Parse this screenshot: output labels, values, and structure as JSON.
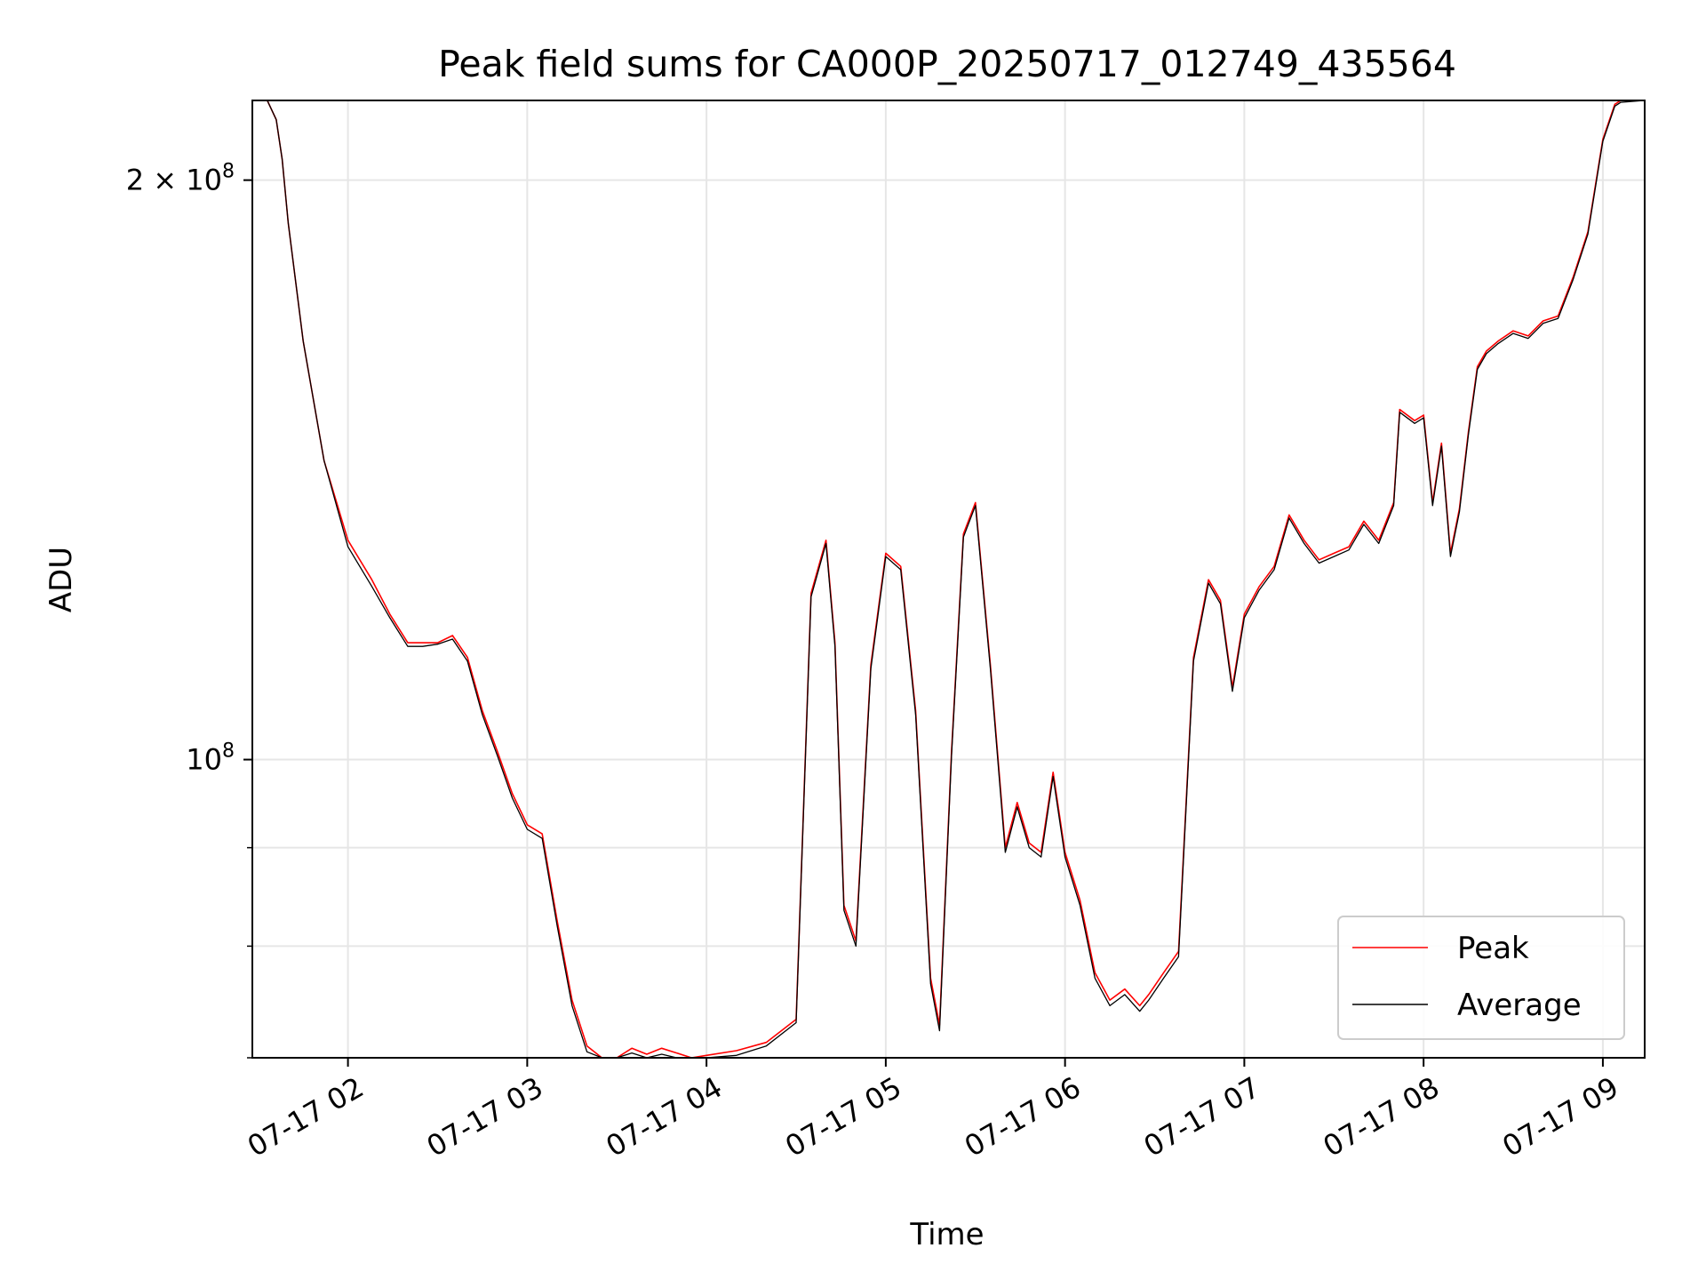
{
  "chart_data": {
    "type": "line",
    "title": "Peak field sums for CA000P_20250717_012749_435564",
    "xlabel": "Time",
    "ylabel": "ADU",
    "x_scale": "time",
    "y_scale": "log",
    "grid": true,
    "legend_position": "lower-right",
    "xlim": [
      "2025-07-17 01:28",
      "2025-07-17 09:14"
    ],
    "ylim": [
      70000000,
      220000000
    ],
    "x_ticks": [
      {
        "value": "2025-07-17 02:00",
        "label": "07-17 02"
      },
      {
        "value": "2025-07-17 03:00",
        "label": "07-17 03"
      },
      {
        "value": "2025-07-17 04:00",
        "label": "07-17 04"
      },
      {
        "value": "2025-07-17 05:00",
        "label": "07-17 05"
      },
      {
        "value": "2025-07-17 06:00",
        "label": "07-17 06"
      },
      {
        "value": "2025-07-17 07:00",
        "label": "07-17 07"
      },
      {
        "value": "2025-07-17 08:00",
        "label": "07-17 08"
      },
      {
        "value": "2025-07-17 09:00",
        "label": "07-17 09"
      }
    ],
    "y_ticks_major": [
      {
        "value": 100000000,
        "label_base": "10",
        "label_exp": "8"
      },
      {
        "value": 200000000,
        "label_base": "2 × 10",
        "label_exp": "8"
      }
    ],
    "y_ticks_minor": [
      70000000,
      80000000,
      90000000
    ],
    "series": [
      {
        "name": "Peak",
        "color": "#ff0000",
        "x": [
          "2025-07-17 01:28",
          "2025-07-17 01:33",
          "2025-07-17 01:36",
          "2025-07-17 01:38",
          "2025-07-17 01:40",
          "2025-07-17 01:45",
          "2025-07-17 01:52",
          "2025-07-17 02:00",
          "2025-07-17 02:08",
          "2025-07-17 02:14",
          "2025-07-17 02:20",
          "2025-07-17 02:25",
          "2025-07-17 02:30",
          "2025-07-17 02:35",
          "2025-07-17 02:40",
          "2025-07-17 02:45",
          "2025-07-17 02:50",
          "2025-07-17 02:55",
          "2025-07-17 03:00",
          "2025-07-17 03:05",
          "2025-07-17 03:10",
          "2025-07-17 03:15",
          "2025-07-17 03:20",
          "2025-07-17 03:25",
          "2025-07-17 03:30",
          "2025-07-17 03:35",
          "2025-07-17 03:40",
          "2025-07-17 03:45",
          "2025-07-17 03:50",
          "2025-07-17 03:55",
          "2025-07-17 04:00",
          "2025-07-17 04:10",
          "2025-07-17 04:20",
          "2025-07-17 04:30",
          "2025-07-17 04:35",
          "2025-07-17 04:40",
          "2025-07-17 04:43",
          "2025-07-17 04:46",
          "2025-07-17 04:50",
          "2025-07-17 04:55",
          "2025-07-17 05:00",
          "2025-07-17 05:05",
          "2025-07-17 05:10",
          "2025-07-17 05:15",
          "2025-07-17 05:18",
          "2025-07-17 05:22",
          "2025-07-17 05:26",
          "2025-07-17 05:30",
          "2025-07-17 05:35",
          "2025-07-17 05:40",
          "2025-07-17 05:44",
          "2025-07-17 05:48",
          "2025-07-17 05:52",
          "2025-07-17 05:56",
          "2025-07-17 06:00",
          "2025-07-17 06:05",
          "2025-07-17 06:10",
          "2025-07-17 06:15",
          "2025-07-17 06:20",
          "2025-07-17 06:25",
          "2025-07-17 06:28",
          "2025-07-17 06:33",
          "2025-07-17 06:38",
          "2025-07-17 06:43",
          "2025-07-17 06:48",
          "2025-07-17 06:52",
          "2025-07-17 06:56",
          "2025-07-17 07:00",
          "2025-07-17 07:05",
          "2025-07-17 07:10",
          "2025-07-17 07:15",
          "2025-07-17 07:20",
          "2025-07-17 07:25",
          "2025-07-17 07:30",
          "2025-07-17 07:35",
          "2025-07-17 07:40",
          "2025-07-17 07:45",
          "2025-07-17 07:50",
          "2025-07-17 07:52",
          "2025-07-17 07:57",
          "2025-07-17 08:00",
          "2025-07-17 08:03",
          "2025-07-17 08:06",
          "2025-07-17 08:09",
          "2025-07-17 08:12",
          "2025-07-17 08:15",
          "2025-07-17 08:18",
          "2025-07-17 08:21",
          "2025-07-17 08:25",
          "2025-07-17 08:30",
          "2025-07-17 08:35",
          "2025-07-17 08:40",
          "2025-07-17 08:45",
          "2025-07-17 08:50",
          "2025-07-17 08:55",
          "2025-07-17 09:00",
          "2025-07-17 09:04",
          "2025-07-17 09:06",
          "2025-07-17 09:14"
        ],
        "values": [
          220000000,
          220000000,
          215000000,
          205000000,
          190000000,
          165000000,
          143000000,
          130000000,
          124000000,
          119000000,
          115000000,
          115000000,
          115000000,
          116000000,
          113000000,
          106000000,
          101000000,
          96000000,
          92500000,
          91500000,
          82500000,
          75000000,
          71000000,
          70000000,
          69700000,
          70800000,
          70300000,
          70800000,
          70400000,
          70000000,
          70200000,
          70600000,
          71300000,
          73300000,
          122000000,
          130000000,
          115000000,
          84000000,
          80500000,
          112000000,
          128000000,
          126000000,
          106000000,
          77000000,
          72800000,
          101000000,
          131000000,
          136000000,
          112000000,
          90000000,
          95000000,
          90500000,
          89500000,
          98500000,
          89500000,
          84500000,
          77500000,
          75000000,
          76000000,
          74500000,
          75500000,
          77500000,
          79500000,
          113000000,
          124000000,
          121000000,
          109000000,
          119000000,
          123000000,
          126000000,
          134000000,
          130000000,
          127000000,
          128000000,
          129000000,
          133000000,
          130000000,
          136000000,
          152000000,
          150000000,
          151000000,
          136000000,
          146000000,
          128000000,
          135000000,
          148000000,
          160000000,
          163000000,
          165000000,
          167000000,
          166000000,
          169000000,
          170000000,
          178000000,
          188000000,
          210000000,
          219000000,
          220000000,
          220000000
        ]
      },
      {
        "name": "Average",
        "color": "#000000",
        "x": [
          "2025-07-17 01:28",
          "2025-07-17 01:33",
          "2025-07-17 01:36",
          "2025-07-17 01:38",
          "2025-07-17 01:40",
          "2025-07-17 01:45",
          "2025-07-17 01:52",
          "2025-07-17 02:00",
          "2025-07-17 02:08",
          "2025-07-17 02:14",
          "2025-07-17 02:20",
          "2025-07-17 02:25",
          "2025-07-17 02:30",
          "2025-07-17 02:35",
          "2025-07-17 02:40",
          "2025-07-17 02:45",
          "2025-07-17 02:50",
          "2025-07-17 02:55",
          "2025-07-17 03:00",
          "2025-07-17 03:05",
          "2025-07-17 03:10",
          "2025-07-17 03:15",
          "2025-07-17 03:20",
          "2025-07-17 03:25",
          "2025-07-17 03:30",
          "2025-07-17 03:35",
          "2025-07-17 03:40",
          "2025-07-17 03:45",
          "2025-07-17 03:50",
          "2025-07-17 03:55",
          "2025-07-17 04:00",
          "2025-07-17 04:10",
          "2025-07-17 04:20",
          "2025-07-17 04:30",
          "2025-07-17 04:35",
          "2025-07-17 04:40",
          "2025-07-17 04:43",
          "2025-07-17 04:46",
          "2025-07-17 04:50",
          "2025-07-17 04:55",
          "2025-07-17 05:00",
          "2025-07-17 05:05",
          "2025-07-17 05:10",
          "2025-07-17 05:15",
          "2025-07-17 05:18",
          "2025-07-17 05:22",
          "2025-07-17 05:26",
          "2025-07-17 05:30",
          "2025-07-17 05:35",
          "2025-07-17 05:40",
          "2025-07-17 05:44",
          "2025-07-17 05:48",
          "2025-07-17 05:52",
          "2025-07-17 05:56",
          "2025-07-17 06:00",
          "2025-07-17 06:05",
          "2025-07-17 06:10",
          "2025-07-17 06:15",
          "2025-07-17 06:20",
          "2025-07-17 06:25",
          "2025-07-17 06:28",
          "2025-07-17 06:33",
          "2025-07-17 06:38",
          "2025-07-17 06:43",
          "2025-07-17 06:48",
          "2025-07-17 06:52",
          "2025-07-17 06:56",
          "2025-07-17 07:00",
          "2025-07-17 07:05",
          "2025-07-17 07:10",
          "2025-07-17 07:15",
          "2025-07-17 07:20",
          "2025-07-17 07:25",
          "2025-07-17 07:30",
          "2025-07-17 07:35",
          "2025-07-17 07:40",
          "2025-07-17 07:45",
          "2025-07-17 07:50",
          "2025-07-17 07:52",
          "2025-07-17 07:57",
          "2025-07-17 08:00",
          "2025-07-17 08:03",
          "2025-07-17 08:06",
          "2025-07-17 08:09",
          "2025-07-17 08:12",
          "2025-07-17 08:15",
          "2025-07-17 08:18",
          "2025-07-17 08:21",
          "2025-07-17 08:25",
          "2025-07-17 08:30",
          "2025-07-17 08:35",
          "2025-07-17 08:40",
          "2025-07-17 08:45",
          "2025-07-17 08:50",
          "2025-07-17 08:55",
          "2025-07-17 09:00",
          "2025-07-17 09:04",
          "2025-07-17 09:06",
          "2025-07-17 09:14"
        ],
        "values": [
          220000000,
          220000000,
          215000000,
          205000000,
          190000000,
          165000000,
          143000000,
          129000000,
          123000000,
          118500000,
          114500000,
          114500000,
          114800000,
          115500000,
          112500000,
          105500000,
          100500000,
          95500000,
          92000000,
          91000000,
          82000000,
          74500000,
          70500000,
          69600000,
          69300000,
          70400000,
          69800000,
          70300000,
          69900000,
          69500000,
          69800000,
          70200000,
          71000000,
          73000000,
          121500000,
          129500000,
          114500000,
          83500000,
          80000000,
          111500000,
          127500000,
          125500000,
          105500000,
          76500000,
          72300000,
          100500000,
          130500000,
          135500000,
          111500000,
          89500000,
          94500000,
          90000000,
          89000000,
          98000000,
          89000000,
          84000000,
          77000000,
          74500000,
          75500000,
          74000000,
          75000000,
          77000000,
          79000000,
          112500000,
          123500000,
          120500000,
          108500000,
          118500000,
          122500000,
          125500000,
          133500000,
          129500000,
          126500000,
          127500000,
          128500000,
          132500000,
          129500000,
          135500000,
          151500000,
          149500000,
          150500000,
          135500000,
          145500000,
          127500000,
          134500000,
          147500000,
          159500000,
          162500000,
          164500000,
          166500000,
          165500000,
          168500000,
          169500000,
          177500000,
          187500000,
          209500000,
          218500000,
          219500000,
          220000000
        ]
      }
    ]
  }
}
